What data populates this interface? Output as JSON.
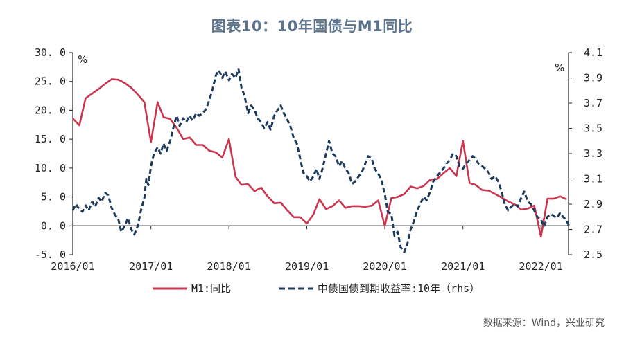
{
  "title": "图表10：10年国债与M1同比",
  "source": "数据来源：Wind，兴业研究",
  "colors": {
    "m1": "#c8374f",
    "bond": "#1f3b5c",
    "axis": "#222222",
    "title": "#5b738d"
  },
  "chart_data": {
    "type": "line",
    "title": "图表10：10年国债与M1同比",
    "xlabel": "",
    "ylabel_left": "%",
    "ylabel_right": "%",
    "x_ticks": [
      "2016/01",
      "2017/01",
      "2018/01",
      "2019/01",
      "2020/01",
      "2021/01",
      "2022/01"
    ],
    "y_left_ticks": [
      "30.0",
      "25.0",
      "20.0",
      "15.0",
      "10.0",
      "5.0",
      "0.0",
      "-5.0"
    ],
    "y_right_ticks": [
      "4.1",
      "3.9",
      "3.7",
      "3.5",
      "3.3",
      "3.1",
      "2.9",
      "2.7",
      "2.5"
    ],
    "ylim_left": [
      -5,
      30
    ],
    "ylim_right": [
      2.5,
      4.1
    ],
    "grid": false,
    "legend_position": "bottom",
    "series": [
      {
        "name": "M1:同比",
        "axis": "left",
        "style": "solid",
        "color": "#c8374f",
        "points": [
          [
            "2016-01",
            18.6
          ],
          [
            "2016-02",
            17.4
          ],
          [
            "2016-03",
            22.1
          ],
          [
            "2016-04",
            22.9
          ],
          [
            "2016-05",
            23.7
          ],
          [
            "2016-06",
            24.6
          ],
          [
            "2016-07",
            25.4
          ],
          [
            "2016-08",
            25.3
          ],
          [
            "2016-09",
            24.7
          ],
          [
            "2016-10",
            23.9
          ],
          [
            "2016-11",
            22.7
          ],
          [
            "2016-12",
            21.4
          ],
          [
            "2017-01",
            14.5
          ],
          [
            "2017-02",
            21.4
          ],
          [
            "2017-03",
            18.8
          ],
          [
            "2017-04",
            18.5
          ],
          [
            "2017-05",
            17.0
          ],
          [
            "2017-06",
            15.0
          ],
          [
            "2017-07",
            15.3
          ],
          [
            "2017-08",
            14.0
          ],
          [
            "2017-09",
            14.0
          ],
          [
            "2017-10",
            13.0
          ],
          [
            "2017-11",
            12.7
          ],
          [
            "2017-12",
            11.8
          ],
          [
            "2018-01",
            15.0
          ],
          [
            "2018-02",
            8.5
          ],
          [
            "2018-03",
            7.1
          ],
          [
            "2018-04",
            7.2
          ],
          [
            "2018-05",
            6.0
          ],
          [
            "2018-06",
            6.6
          ],
          [
            "2018-07",
            5.1
          ],
          [
            "2018-08",
            3.9
          ],
          [
            "2018-09",
            4.0
          ],
          [
            "2018-10",
            2.7
          ],
          [
            "2018-11",
            1.5
          ],
          [
            "2018-12",
            1.5
          ],
          [
            "2019-01",
            0.4
          ],
          [
            "2019-02",
            2.0
          ],
          [
            "2019-03",
            4.6
          ],
          [
            "2019-04",
            2.9
          ],
          [
            "2019-05",
            3.4
          ],
          [
            "2019-06",
            4.4
          ],
          [
            "2019-07",
            3.1
          ],
          [
            "2019-08",
            3.4
          ],
          [
            "2019-09",
            3.4
          ],
          [
            "2019-10",
            3.3
          ],
          [
            "2019-11",
            3.5
          ],
          [
            "2019-12",
            4.4
          ],
          [
            "2020-01",
            0.0
          ],
          [
            "2020-02",
            4.8
          ],
          [
            "2020-03",
            5.0
          ],
          [
            "2020-04",
            5.5
          ],
          [
            "2020-05",
            6.8
          ],
          [
            "2020-06",
            6.5
          ],
          [
            "2020-07",
            6.9
          ],
          [
            "2020-08",
            8.0
          ],
          [
            "2020-09",
            8.1
          ],
          [
            "2020-10",
            9.1
          ],
          [
            "2020-11",
            10.0
          ],
          [
            "2020-12",
            8.6
          ],
          [
            "2021-01",
            14.7
          ],
          [
            "2021-02",
            7.4
          ],
          [
            "2021-03",
            7.1
          ],
          [
            "2021-04",
            6.2
          ],
          [
            "2021-05",
            6.1
          ],
          [
            "2021-06",
            5.5
          ],
          [
            "2021-07",
            4.9
          ],
          [
            "2021-08",
            4.2
          ],
          [
            "2021-09",
            3.7
          ],
          [
            "2021-10",
            2.8
          ],
          [
            "2021-11",
            3.0
          ],
          [
            "2021-12",
            3.5
          ],
          [
            "2022-01",
            -1.9
          ],
          [
            "2022-02",
            4.7
          ],
          [
            "2022-03",
            4.7
          ],
          [
            "2022-04",
            5.1
          ],
          [
            "2022-05",
            4.6
          ]
        ]
      },
      {
        "name": "中债国债到期收益率:10年（rhs）",
        "axis": "right",
        "style": "dashed",
        "color": "#1f3b5c",
        "points": [
          [
            "2016-01",
            2.85
          ],
          [
            "2016-01-15",
            2.9
          ],
          [
            "2016-02",
            2.86
          ],
          [
            "2016-02-15",
            2.84
          ],
          [
            "2016-03",
            2.89
          ],
          [
            "2016-03-15",
            2.85
          ],
          [
            "2016-04",
            2.92
          ],
          [
            "2016-04-15",
            2.88
          ],
          [
            "2016-05",
            2.95
          ],
          [
            "2016-05-15",
            2.92
          ],
          [
            "2016-06",
            2.99
          ],
          [
            "2016-06-15",
            2.97
          ],
          [
            "2016-07",
            2.87
          ],
          [
            "2016-07-15",
            2.82
          ],
          [
            "2016-08",
            2.78
          ],
          [
            "2016-08-15",
            2.68
          ],
          [
            "2016-09",
            2.73
          ],
          [
            "2016-09-15",
            2.79
          ],
          [
            "2016-10",
            2.7
          ],
          [
            "2016-10-15",
            2.66
          ],
          [
            "2016-11",
            2.73
          ],
          [
            "2016-11-15",
            2.85
          ],
          [
            "2016-12",
            2.95
          ],
          [
            "2016-12-10",
            3.1
          ],
          [
            "2016-12-20",
            3.05
          ],
          [
            "2017-01",
            3.2
          ],
          [
            "2017-01-15",
            3.3
          ],
          [
            "2017-02",
            3.35
          ],
          [
            "2017-02-15",
            3.3
          ],
          [
            "2017-03",
            3.38
          ],
          [
            "2017-03-15",
            3.32
          ],
          [
            "2017-04",
            3.4
          ],
          [
            "2017-04-15",
            3.5
          ],
          [
            "2017-05",
            3.6
          ],
          [
            "2017-05-15",
            3.52
          ],
          [
            "2017-06",
            3.58
          ],
          [
            "2017-06-15",
            3.55
          ],
          [
            "2017-07",
            3.6
          ],
          [
            "2017-07-15",
            3.56
          ],
          [
            "2017-08",
            3.62
          ],
          [
            "2017-08-15",
            3.6
          ],
          [
            "2017-09",
            3.62
          ],
          [
            "2017-09-15",
            3.65
          ],
          [
            "2017-10",
            3.72
          ],
          [
            "2017-10-15",
            3.8
          ],
          [
            "2017-11",
            3.92
          ],
          [
            "2017-11-15",
            3.96
          ],
          [
            "2017-12",
            3.9
          ],
          [
            "2017-12-15",
            3.95
          ],
          [
            "2018-01",
            3.88
          ],
          [
            "2018-01-15",
            3.93
          ],
          [
            "2018-02",
            3.9
          ],
          [
            "2018-02-15",
            3.97
          ],
          [
            "2018-03",
            3.82
          ],
          [
            "2018-03-15",
            3.76
          ],
          [
            "2018-04",
            3.62
          ],
          [
            "2018-04-15",
            3.68
          ],
          [
            "2018-05",
            3.65
          ],
          [
            "2018-05-15",
            3.58
          ],
          [
            "2018-06",
            3.55
          ],
          [
            "2018-06-15",
            3.5
          ],
          [
            "2018-07",
            3.55
          ],
          [
            "2018-07-15",
            3.49
          ],
          [
            "2018-08",
            3.6
          ],
          [
            "2018-08-15",
            3.64
          ],
          [
            "2018-09",
            3.68
          ],
          [
            "2018-09-15",
            3.62
          ],
          [
            "2018-10",
            3.57
          ],
          [
            "2018-10-15",
            3.52
          ],
          [
            "2018-11",
            3.42
          ],
          [
            "2018-11-15",
            3.38
          ],
          [
            "2018-12",
            3.26
          ],
          [
            "2018-12-15",
            3.15
          ],
          [
            "2019-01",
            3.12
          ],
          [
            "2019-01-15",
            3.08
          ],
          [
            "2019-02",
            3.12
          ],
          [
            "2019-02-15",
            3.18
          ],
          [
            "2019-03",
            3.1
          ],
          [
            "2019-03-15",
            3.18
          ],
          [
            "2019-04",
            3.3
          ],
          [
            "2019-04-15",
            3.4
          ],
          [
            "2019-05",
            3.3
          ],
          [
            "2019-05-15",
            3.28
          ],
          [
            "2019-06",
            3.2
          ],
          [
            "2019-06-15",
            3.24
          ],
          [
            "2019-07",
            3.18
          ],
          [
            "2019-07-15",
            3.15
          ],
          [
            "2019-08",
            3.06
          ],
          [
            "2019-08-15",
            3.08
          ],
          [
            "2019-09",
            3.12
          ],
          [
            "2019-09-15",
            3.15
          ],
          [
            "2019-10",
            3.22
          ],
          [
            "2019-10-15",
            3.28
          ],
          [
            "2019-11",
            3.26
          ],
          [
            "2019-11-15",
            3.18
          ],
          [
            "2019-12",
            3.14
          ],
          [
            "2019-12-15",
            3.1
          ],
          [
            "2020-01",
            2.98
          ],
          [
            "2020-01-15",
            2.84
          ],
          [
            "2020-02",
            2.82
          ],
          [
            "2020-02-15",
            2.65
          ],
          [
            "2020-03",
            2.68
          ],
          [
            "2020-03-15",
            2.56
          ],
          [
            "2020-04",
            2.52
          ],
          [
            "2020-04-15",
            2.58
          ],
          [
            "2020-05",
            2.7
          ],
          [
            "2020-05-15",
            2.76
          ],
          [
            "2020-06",
            2.85
          ],
          [
            "2020-06-15",
            2.9
          ],
          [
            "2020-07",
            2.96
          ],
          [
            "2020-07-15",
            2.93
          ],
          [
            "2020-08",
            3.0
          ],
          [
            "2020-08-15",
            3.08
          ],
          [
            "2020-09",
            3.12
          ],
          [
            "2020-09-15",
            3.15
          ],
          [
            "2020-10",
            3.18
          ],
          [
            "2020-10-15",
            3.22
          ],
          [
            "2020-11",
            3.25
          ],
          [
            "2020-11-15",
            3.3
          ],
          [
            "2020-12",
            3.28
          ],
          [
            "2020-12-15",
            3.2
          ],
          [
            "2021-01",
            3.18
          ],
          [
            "2021-01-15",
            3.22
          ],
          [
            "2021-02",
            3.25
          ],
          [
            "2021-02-15",
            3.28
          ],
          [
            "2021-03",
            3.26
          ],
          [
            "2021-03-15",
            3.22
          ],
          [
            "2021-04",
            3.2
          ],
          [
            "2021-04-15",
            3.18
          ],
          [
            "2021-05",
            3.15
          ],
          [
            "2021-05-15",
            3.1
          ],
          [
            "2021-06",
            3.12
          ],
          [
            "2021-06-15",
            3.08
          ],
          [
            "2021-07",
            3.0
          ],
          [
            "2021-07-15",
            2.9
          ],
          [
            "2021-08",
            2.85
          ],
          [
            "2021-08-15",
            2.88
          ],
          [
            "2021-09",
            2.9
          ],
          [
            "2021-09-15",
            2.88
          ],
          [
            "2021-10",
            2.95
          ],
          [
            "2021-10-15",
            3.0
          ],
          [
            "2021-11",
            2.92
          ],
          [
            "2021-11-15",
            2.9
          ],
          [
            "2021-12",
            2.85
          ],
          [
            "2021-12-15",
            2.8
          ],
          [
            "2022-01",
            2.78
          ],
          [
            "2022-01-15",
            2.72
          ],
          [
            "2022-02",
            2.8
          ],
          [
            "2022-02-15",
            2.82
          ],
          [
            "2022-03",
            2.81
          ],
          [
            "2022-03-15",
            2.79
          ],
          [
            "2022-04",
            2.83
          ],
          [
            "2022-04-15",
            2.8
          ],
          [
            "2022-05",
            2.77
          ],
          [
            "2022-05-15",
            2.72
          ]
        ]
      }
    ]
  }
}
